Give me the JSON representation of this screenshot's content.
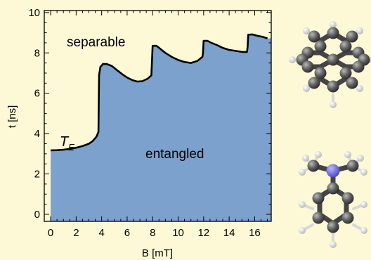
{
  "chart_data": {
    "type": "area",
    "xlabel": "B [mT]",
    "ylabel": "t [ns]",
    "xlim": [
      -0.5,
      17.3
    ],
    "ylim": [
      -0.35,
      10.1
    ],
    "xticks": [
      0,
      2,
      4,
      6,
      8,
      10,
      12,
      14,
      16
    ],
    "yticks": [
      0,
      2,
      4,
      6,
      8,
      10
    ],
    "grid": false,
    "fill_color": "#7ba1cc",
    "line_color": "#000000",
    "region_labels": {
      "above": "separable",
      "below": "entangled",
      "threshold": "T",
      "threshold_subscript": "E"
    },
    "series": [
      {
        "x": [
          0.0,
          0.5,
          1.0,
          1.5,
          2.0,
          2.5,
          3.0,
          3.3,
          3.6,
          3.75,
          3.8,
          3.9,
          4.1,
          4.4,
          4.8,
          5.2,
          5.6,
          6.0,
          6.4,
          6.8,
          7.2,
          7.6,
          7.9,
          7.95,
          8.0,
          8.3,
          8.6,
          9.0,
          9.5,
          10.0,
          10.5,
          11.0,
          11.5,
          11.9,
          11.95,
          12.0,
          12.3,
          12.6,
          13.0,
          13.5,
          14.0,
          14.5,
          15.0,
          15.4,
          15.45,
          15.5,
          15.8,
          16.2,
          16.6,
          17.0
        ],
        "y": [
          3.17,
          3.18,
          3.2,
          3.24,
          3.3,
          3.38,
          3.5,
          3.63,
          3.85,
          4.08,
          6.9,
          7.3,
          7.45,
          7.45,
          7.35,
          7.15,
          6.95,
          6.78,
          6.65,
          6.58,
          6.6,
          6.72,
          6.88,
          7.6,
          8.35,
          8.35,
          8.2,
          8.0,
          7.8,
          7.65,
          7.55,
          7.5,
          7.6,
          7.8,
          8.0,
          8.6,
          8.6,
          8.5,
          8.4,
          8.25,
          8.15,
          8.1,
          8.05,
          8.05,
          8.3,
          8.9,
          8.92,
          8.85,
          8.8,
          8.72
        ]
      }
    ]
  }
}
